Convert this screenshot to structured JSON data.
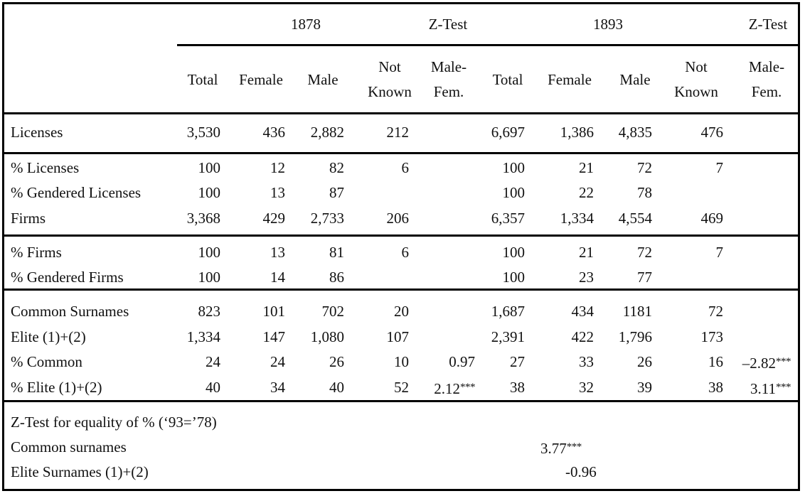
{
  "header": {
    "group_1878": "1878",
    "group_ztest_1": "Z-Test",
    "group_1893": "1893",
    "group_ztest_2": "Z-Test",
    "columns": [
      {
        "line1": "",
        "line2": "Total"
      },
      {
        "line1": "",
        "line2": "Female"
      },
      {
        "line1": "",
        "line2": "Male"
      },
      {
        "line1": "Not",
        "line2": "Known"
      },
      {
        "line1": "Male-",
        "line2": "Fem."
      },
      {
        "line1": "",
        "line2": "Total"
      },
      {
        "line1": "",
        "line2": "Female"
      },
      {
        "line1": "",
        "line2": "Male"
      },
      {
        "line1": "Not",
        "line2": "Known"
      },
      {
        "line1": "Male-",
        "line2": "Fem."
      }
    ]
  },
  "rows": [
    {
      "label": "Licenses",
      "cells": [
        "3,530",
        "436",
        "2,882",
        "212",
        "",
        "6,697",
        "1,386",
        "4,835",
        "476",
        ""
      ]
    },
    {
      "label": "% Licenses",
      "cells": [
        "100",
        "12",
        "82",
        "6",
        "",
        "100",
        "21",
        "72",
        "7",
        ""
      ]
    },
    {
      "label": "% Gendered Licenses",
      "cells": [
        "100",
        "13",
        "87",
        "",
        "",
        "100",
        "22",
        "78",
        "",
        ""
      ]
    },
    {
      "label": "Firms",
      "cells": [
        "3,368",
        "429",
        "2,733",
        "206",
        "",
        "6,357",
        "1,334",
        "4,554",
        "469",
        ""
      ]
    },
    {
      "label": "% Firms",
      "cells": [
        "100",
        "13",
        "81",
        "6",
        "",
        "100",
        "21",
        "72",
        "7",
        ""
      ]
    },
    {
      "label": "% Gendered Firms",
      "cells": [
        "100",
        "14",
        "86",
        "",
        "",
        "100",
        "23",
        "77",
        "",
        ""
      ]
    },
    {
      "label": "Common Surnames",
      "cells": [
        "823",
        "101",
        "702",
        "20",
        "",
        "1,687",
        "434",
        "1181",
        "72",
        ""
      ]
    },
    {
      "label": "Elite (1)+(2)",
      "cells": [
        "1,334",
        "147",
        "1,080",
        "107",
        "",
        "2,391",
        "422",
        "1,796",
        "173",
        ""
      ]
    },
    {
      "label": "% Common",
      "cells": [
        "24",
        "24",
        "26",
        "10",
        "0.97",
        "27",
        "33",
        "26",
        "16",
        "–2.82***"
      ]
    },
    {
      "label": "% Elite (1)+(2)",
      "cells": [
        "40",
        "34",
        "40",
        "52",
        "2.12***",
        "38",
        "32",
        "39",
        "38",
        "3.11***"
      ]
    }
  ],
  "footer": {
    "title": "Z-Test for equality of % (‘93=’78)",
    "rows": [
      {
        "label": "Common surnames",
        "value": "3.77***"
      },
      {
        "label": "Elite Surnames (1)+(2)",
        "value": "-0.96"
      }
    ]
  }
}
